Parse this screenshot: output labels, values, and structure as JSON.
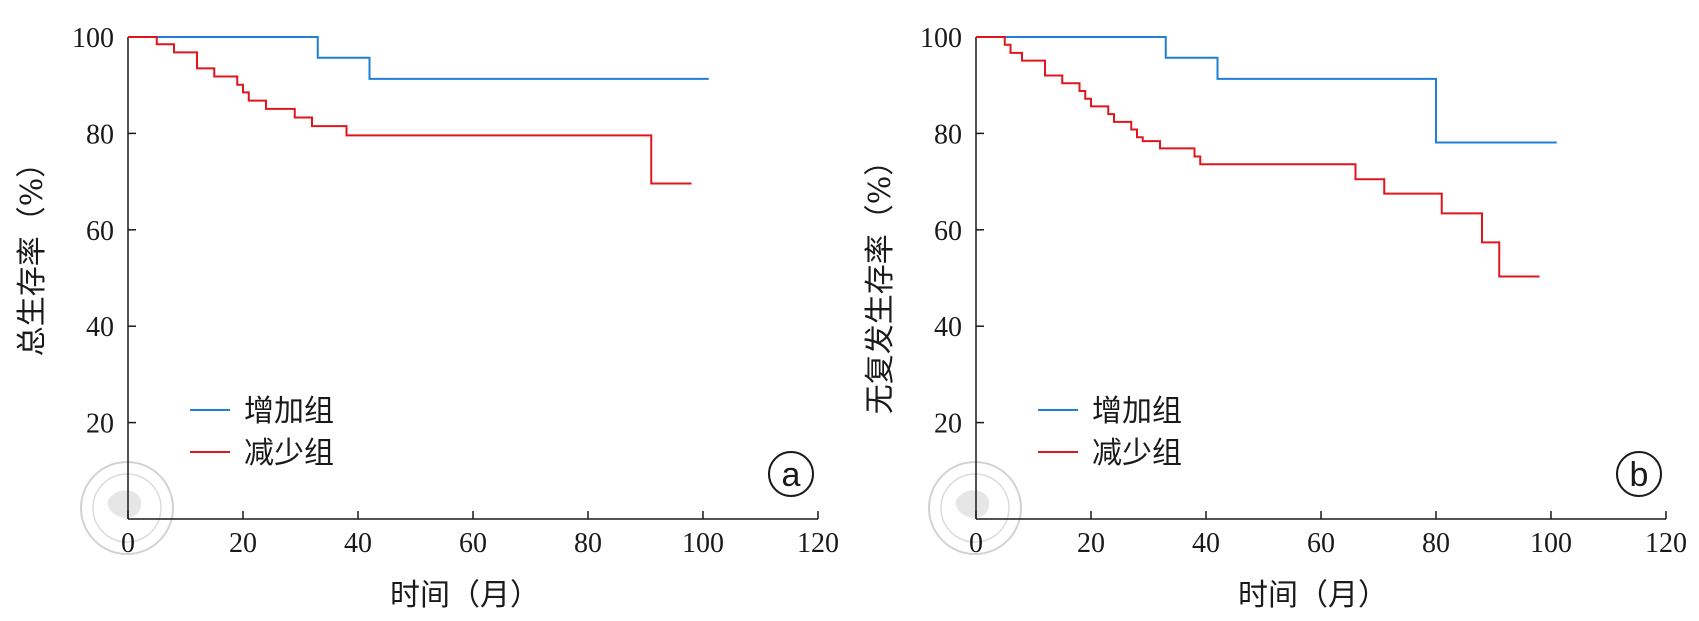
{
  "chart_data": [
    {
      "type": "line",
      "panel_label": "a",
      "xlabel": "时间（月）",
      "ylabel": "总生存率（%）",
      "xlim": [
        0,
        120
      ],
      "ylim": [
        0,
        100
      ],
      "xticks": [
        "0",
        "20",
        "40",
        "60",
        "80",
        "100",
        "120"
      ],
      "yticks": [
        "20",
        "40",
        "60",
        "80",
        "100"
      ],
      "legend_position": "lower-left",
      "series": [
        {
          "name": "增加组",
          "color": "#1f7fd6",
          "steps": [
            [
              0,
              100
            ],
            [
              33,
              95.7
            ],
            [
              42,
              91.3
            ],
            [
              101,
              91.3
            ]
          ]
        },
        {
          "name": "减少组",
          "color": "#e0161e",
          "steps": [
            [
              0,
              100
            ],
            [
              5,
              98.5
            ],
            [
              8,
              96.8
            ],
            [
              12,
              93.5
            ],
            [
              15,
              91.8
            ],
            [
              19,
              90.1
            ],
            [
              20,
              88.5
            ],
            [
              21,
              86.8
            ],
            [
              24,
              85.1
            ],
            [
              29,
              83.3
            ],
            [
              32,
              81.5
            ],
            [
              38,
              79.6
            ],
            [
              91,
              69.6
            ],
            [
              98,
              69.6
            ]
          ]
        }
      ]
    },
    {
      "type": "line",
      "panel_label": "b",
      "xlabel": "时间（月）",
      "ylabel": "无复发生存率（%）",
      "xlim": [
        0,
        120
      ],
      "ylim": [
        0,
        100
      ],
      "xticks": [
        "0",
        "20",
        "40",
        "60",
        "80",
        "100",
        "120"
      ],
      "yticks": [
        "20",
        "40",
        "60",
        "80",
        "100"
      ],
      "legend_position": "lower-left",
      "series": [
        {
          "name": "增加组",
          "color": "#1f7fd6",
          "steps": [
            [
              0,
              100
            ],
            [
              33,
              95.7
            ],
            [
              42,
              91.3
            ],
            [
              80,
              78.1
            ],
            [
              101,
              78.1
            ]
          ]
        },
        {
          "name": "减少组",
          "color": "#e0161e",
          "steps": [
            [
              0,
              100
            ],
            [
              5,
              98.4
            ],
            [
              6,
              96.7
            ],
            [
              8,
              95.1
            ],
            [
              12,
              92.0
            ],
            [
              15,
              90.4
            ],
            [
              18,
              88.8
            ],
            [
              19,
              87.2
            ],
            [
              20,
              85.6
            ],
            [
              23,
              84.0
            ],
            [
              24,
              82.4
            ],
            [
              27,
              80.8
            ],
            [
              28,
              79.2
            ],
            [
              29,
              78.4
            ],
            [
              32,
              76.9
            ],
            [
              38,
              75.2
            ],
            [
              39,
              73.6
            ],
            [
              66,
              70.5
            ],
            [
              71,
              67.5
            ],
            [
              81,
              63.4
            ],
            [
              88,
              57.4
            ],
            [
              91,
              50.3
            ],
            [
              98,
              50.3
            ]
          ]
        }
      ]
    }
  ]
}
